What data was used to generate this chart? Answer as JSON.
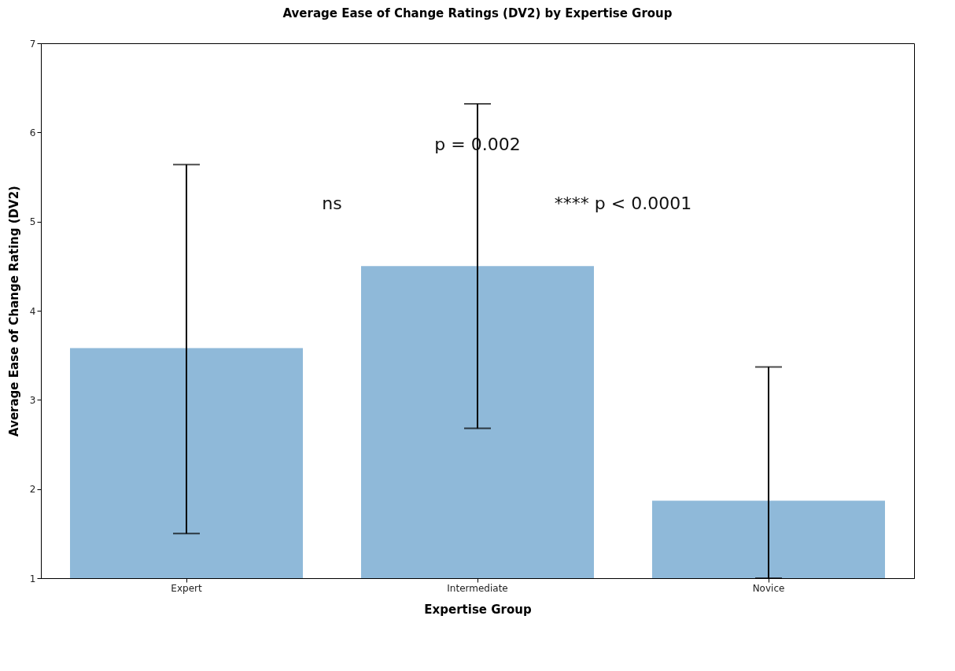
{
  "chart_data": {
    "type": "bar",
    "title": "Average Ease of Change Ratings (DV2) by Expertise Group",
    "xlabel": "Expertise Group",
    "ylabel": "Average Ease of Change Rating (DV2)",
    "categories": [
      "Expert",
      "Intermediate",
      "Novice"
    ],
    "values": [
      3.58,
      4.5,
      1.87
    ],
    "errors": [
      [
        1.5,
        5.64
      ],
      [
        2.68,
        6.32
      ],
      [
        1,
        3.37
      ]
    ],
    "color": "#8fb9d9",
    "ylim": [
      1,
      7
    ],
    "yticks": [
      1,
      2,
      3,
      4,
      5,
      6,
      7
    ],
    "grid": false,
    "annotations": [
      "ns",
      "**** p < 0.0001",
      "p = 0.002"
    ]
  }
}
